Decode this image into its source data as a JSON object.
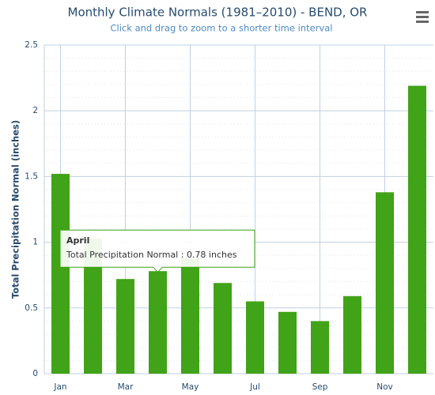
{
  "chart_data": {
    "type": "bar",
    "title": "Monthly Climate Normals (1981–2010) - BEND, OR",
    "subtitle": "Click and drag to zoom to a shorter time interval",
    "y_label": "Total Precipitation Normal (inches)",
    "categories": [
      "Jan",
      null,
      "Mar",
      null,
      "May",
      null,
      "Jul",
      null,
      "Sep",
      null,
      "Nov",
      null
    ],
    "series": [
      {
        "name": "Total Precipitation Normal",
        "color": "#41a317",
        "values": [
          1.52,
          1.03,
          0.72,
          0.78,
          0.88,
          0.69,
          0.55,
          0.47,
          0.4,
          0.59,
          1.38,
          2.19
        ]
      }
    ],
    "ylim": [
      0,
      2.5
    ],
    "yticks": [
      0,
      0.5,
      1,
      1.5,
      2,
      2.5
    ],
    "grid": true,
    "minor_grid": true,
    "tooltip": {
      "header": "April",
      "text": "Total Precipitation Normal : 0.78 inches",
      "index": 3
    }
  }
}
